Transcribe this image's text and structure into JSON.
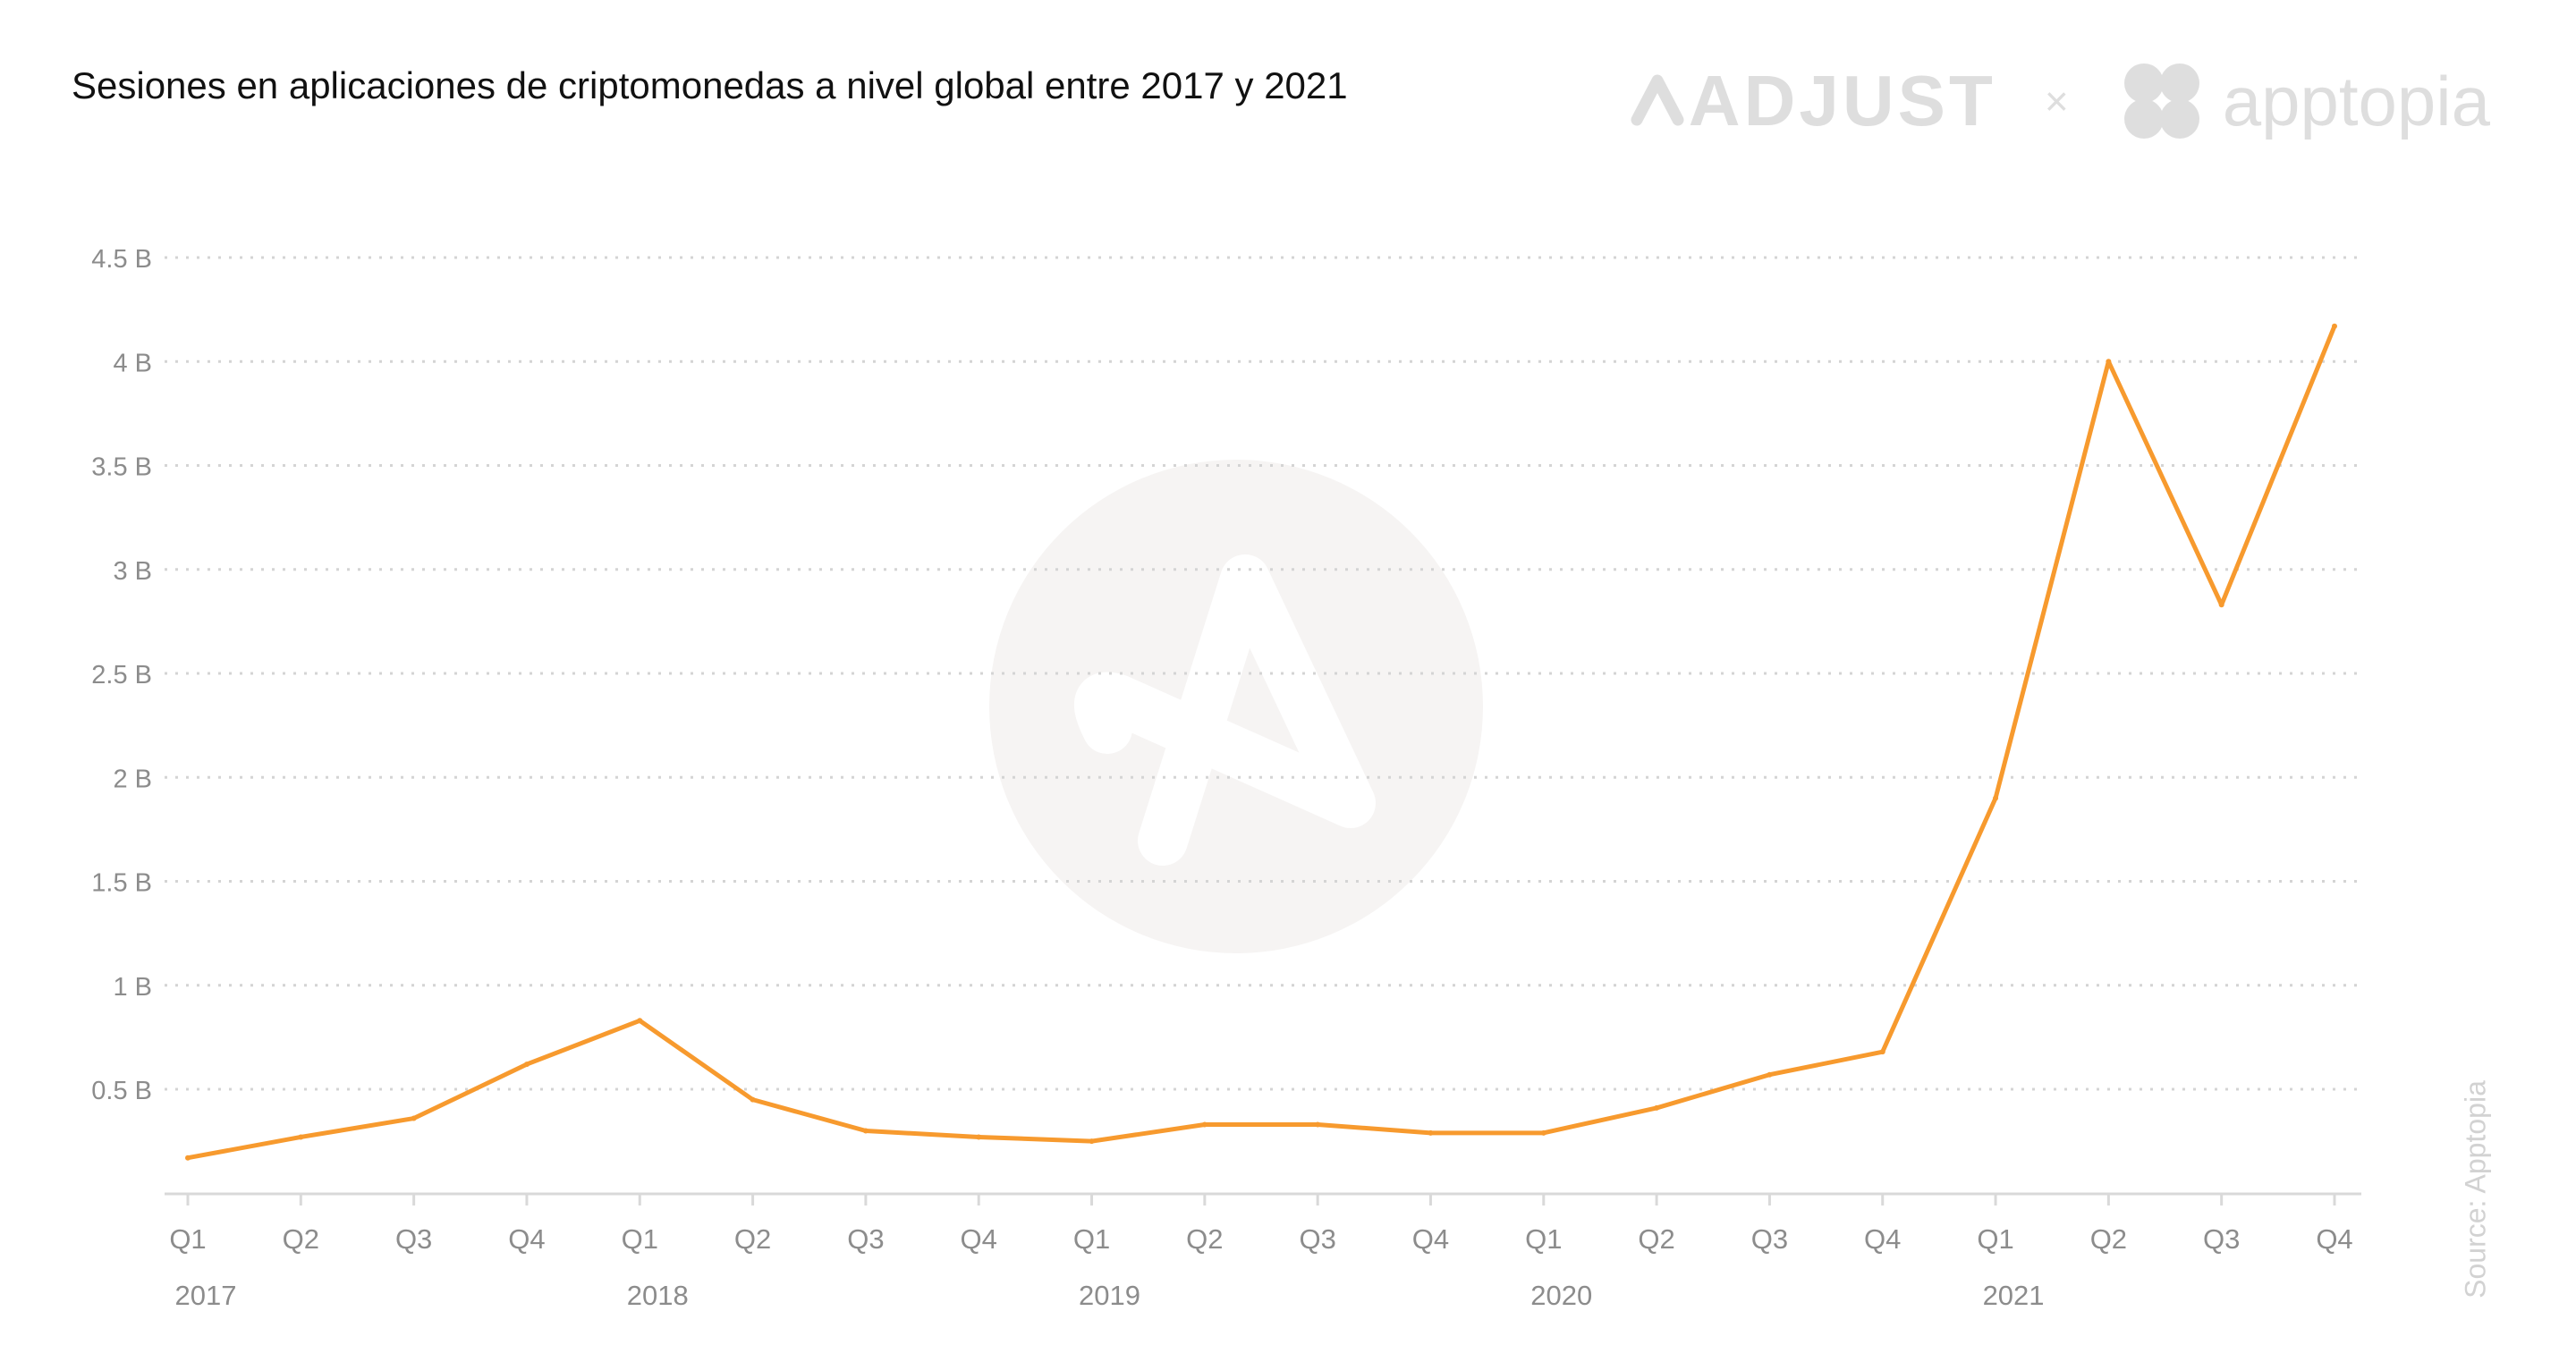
{
  "title": "Sesiones en aplicaciones de criptomonedas a nivel global entre 2017 y 2021",
  "branding": {
    "adjust": "ADJUST",
    "separator": "×",
    "apptopia": "apptopia",
    "color": "#dedede"
  },
  "source_note": "Source: Apptopia",
  "watermark_icon": "adjust-logo-icon",
  "chart_data": {
    "type": "line",
    "title": "Sesiones en aplicaciones de criptomonedas a nivel global entre 2017 y 2021",
    "xlabel": "",
    "ylabel": "",
    "categories": [
      "Q1",
      "Q2",
      "Q3",
      "Q4",
      "Q1",
      "Q2",
      "Q3",
      "Q4",
      "Q1",
      "Q2",
      "Q3",
      "Q4",
      "Q1",
      "Q2",
      "Q3",
      "Q4",
      "Q1",
      "Q2",
      "Q3",
      "Q4"
    ],
    "years": [
      "2017",
      "2018",
      "2019",
      "2020",
      "2021"
    ],
    "series": [
      {
        "values": [
          0.17,
          0.27,
          0.36,
          0.62,
          0.83,
          0.45,
          0.3,
          0.27,
          0.25,
          0.33,
          0.33,
          0.29,
          0.29,
          0.41,
          0.57,
          0.68,
          1.9,
          4.0,
          2.83,
          4.17
        ],
        "color": "#f79a2e"
      }
    ],
    "yticks": [
      0.5,
      1,
      1.5,
      2,
      2.5,
      3,
      3.5,
      4,
      4.5
    ],
    "ytick_labels": [
      "0.5 B",
      "1 B",
      "1.5 B",
      "2 B",
      "2.5 B",
      "3 B",
      "3.5 B",
      "4 B",
      "4.5 B"
    ],
    "ylim": [
      0,
      4.5
    ],
    "grid": true,
    "grid_style": "dotted",
    "legend": "none"
  }
}
